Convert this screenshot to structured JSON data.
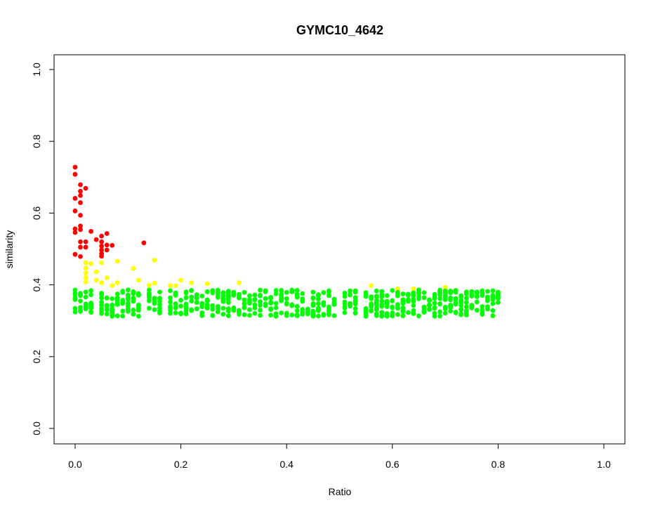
{
  "chart_data": {
    "type": "scatter",
    "title": "GYMC10_4642",
    "xlabel": "Ratio",
    "ylabel": "similarity",
    "xlim": [
      0,
      1
    ],
    "ylim": [
      0,
      1
    ],
    "grid": false,
    "legend": "none",
    "x_ticks": [
      "0.0",
      "0.2",
      "0.4",
      "0.6",
      "0.8",
      "1.0"
    ],
    "y_ticks": [
      "0.0",
      "0.2",
      "0.4",
      "0.6",
      "0.8",
      "1.0"
    ],
    "colors": {
      "high": "#ff0000",
      "mid": "#ffff00",
      "low": "#00ff00"
    },
    "series": [
      {
        "color_key": "high",
        "points": [
          [
            0.0,
            0.728
          ],
          [
            0.0,
            0.708
          ],
          [
            0.0,
            0.641
          ],
          [
            0.0,
            0.606
          ],
          [
            0.0,
            0.556
          ],
          [
            0.0,
            0.546
          ],
          [
            0.0,
            0.485
          ],
          [
            0.01,
            0.679
          ],
          [
            0.01,
            0.661
          ],
          [
            0.01,
            0.649
          ],
          [
            0.01,
            0.629
          ],
          [
            0.01,
            0.594
          ],
          [
            0.01,
            0.564
          ],
          [
            0.01,
            0.554
          ],
          [
            0.01,
            0.52
          ],
          [
            0.01,
            0.505
          ],
          [
            0.01,
            0.479
          ],
          [
            0.02,
            0.669
          ],
          [
            0.02,
            0.52
          ],
          [
            0.02,
            0.505
          ],
          [
            0.03,
            0.549
          ],
          [
            0.04,
            0.526
          ],
          [
            0.05,
            0.536
          ],
          [
            0.05,
            0.52
          ],
          [
            0.05,
            0.508
          ],
          [
            0.05,
            0.497
          ],
          [
            0.05,
            0.487
          ],
          [
            0.05,
            0.48
          ],
          [
            0.06,
            0.543
          ],
          [
            0.06,
            0.511
          ],
          [
            0.06,
            0.497
          ],
          [
            0.07,
            0.51
          ],
          [
            0.13,
            0.517
          ]
        ]
      },
      {
        "color_key": "mid",
        "points": [
          [
            0.02,
            0.462
          ],
          [
            0.02,
            0.447
          ],
          [
            0.02,
            0.433
          ],
          [
            0.02,
            0.42
          ],
          [
            0.02,
            0.408
          ],
          [
            0.03,
            0.459
          ],
          [
            0.04,
            0.436
          ],
          [
            0.04,
            0.413
          ],
          [
            0.05,
            0.462
          ],
          [
            0.05,
            0.406
          ],
          [
            0.06,
            0.42
          ],
          [
            0.07,
            0.398
          ],
          [
            0.08,
            0.466
          ],
          [
            0.08,
            0.406
          ],
          [
            0.11,
            0.446
          ],
          [
            0.12,
            0.413
          ],
          [
            0.14,
            0.399
          ],
          [
            0.15,
            0.469
          ],
          [
            0.15,
            0.405
          ],
          [
            0.18,
            0.398
          ],
          [
            0.19,
            0.398
          ],
          [
            0.2,
            0.413
          ],
          [
            0.22,
            0.406
          ],
          [
            0.25,
            0.403
          ],
          [
            0.31,
            0.406
          ],
          [
            0.56,
            0.398
          ],
          [
            0.61,
            0.389
          ],
          [
            0.64,
            0.389
          ],
          [
            0.7,
            0.393
          ]
        ]
      },
      {
        "color_key": "low",
        "x_start": 0.0,
        "x_end": 0.8,
        "x_step": 0.01,
        "y_min": 0.3,
        "y_max": 0.39,
        "note_missing_x": [
          0.04,
          0.13,
          0.17,
          0.5,
          0.54
        ]
      }
    ]
  }
}
